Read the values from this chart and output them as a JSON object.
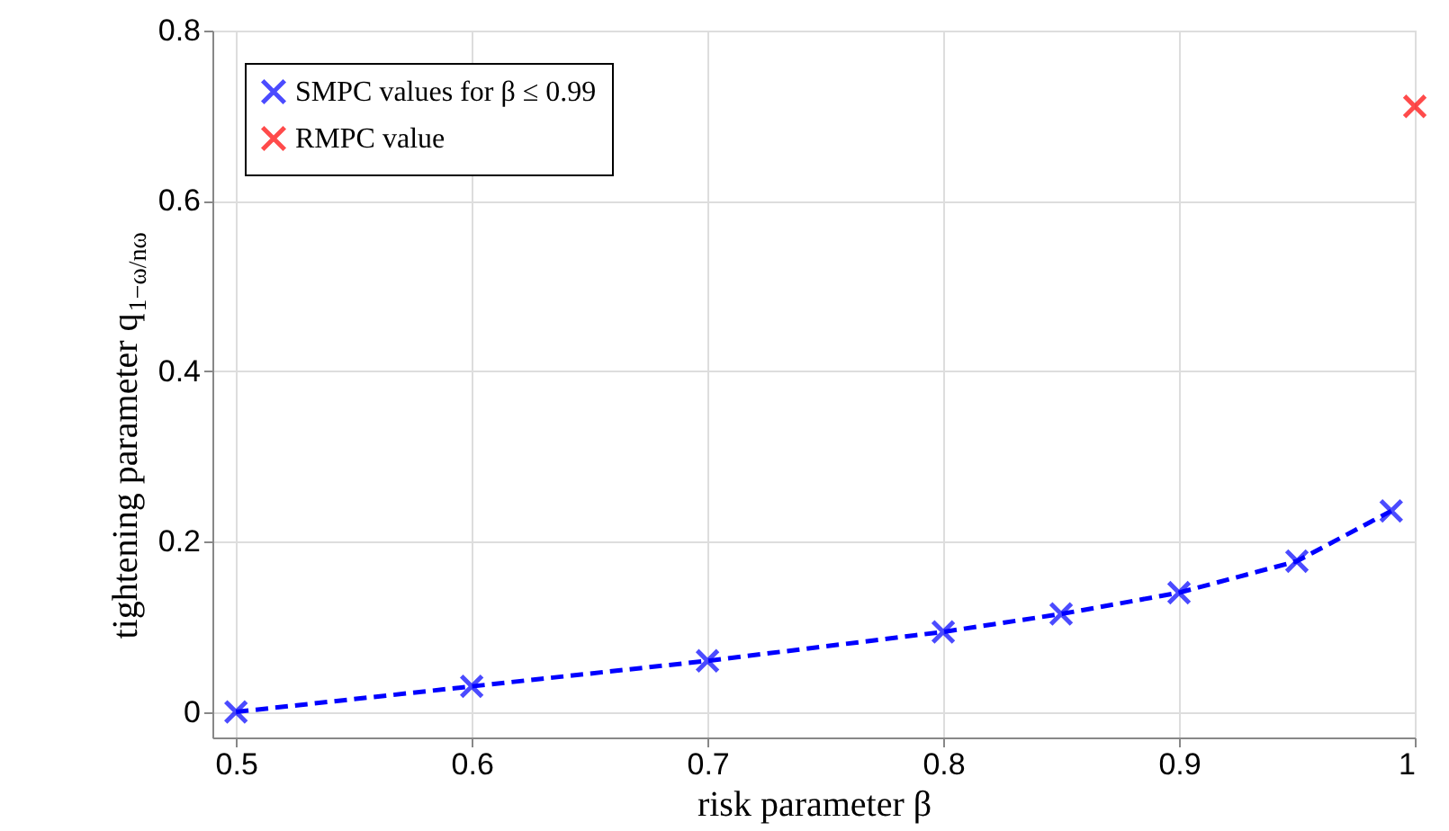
{
  "chart_data": {
    "type": "line",
    "xlabel": "risk parameter β",
    "ylabel": "tightening parameter q$_{1−ω/nω}$",
    "xlim": [
      0.49,
      1.0
    ],
    "xticks": [
      0.5,
      0.6,
      0.7,
      0.8,
      0.9,
      1
    ],
    "ylim": [
      -0.03,
      0.8
    ],
    "yticks": [
      0,
      0.2,
      0.4,
      0.6,
      0.8
    ],
    "grid": true,
    "legend": "top left",
    "series": [
      {
        "name": "SMPC values for β ≤ 0.99",
        "color": "#0000ff",
        "line_style": "dashed",
        "marker": "cross",
        "x": [
          0.5,
          0.6,
          0.7,
          0.8,
          0.85,
          0.9,
          0.95,
          0.99
        ],
        "values": [
          0.0,
          0.03,
          0.06,
          0.094,
          0.115,
          0.14,
          0.177,
          0.236
        ]
      },
      {
        "name": "RMPC value",
        "type": "scatter",
        "color": "#ff0000",
        "marker": "cross",
        "x": [
          1.0
        ],
        "values": [
          0.711
        ]
      }
    ]
  }
}
